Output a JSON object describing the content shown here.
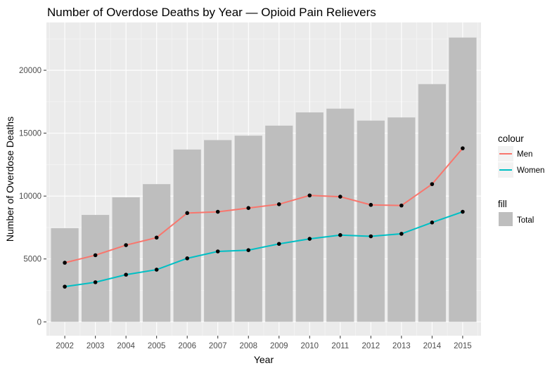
{
  "chart_data": {
    "type": "bar",
    "title": "Number of Overdose Deaths by Year — Opioid Pain Relievers",
    "xlabel": "Year",
    "ylabel": "Number of Overdose Deaths",
    "categories": [
      "2002",
      "2003",
      "2004",
      "2005",
      "2006",
      "2007",
      "2008",
      "2009",
      "2010",
      "2011",
      "2012",
      "2013",
      "2014",
      "2015"
    ],
    "ylim": [
      -1100,
      23800
    ],
    "yticks": [
      0,
      5000,
      10000,
      15000,
      20000
    ],
    "ytick_labels": [
      "0",
      "5000",
      "10000",
      "15000",
      "20000"
    ],
    "grid": true,
    "legend_position": "right",
    "bars": {
      "legend_title": "fill",
      "name": "Total",
      "color": "#bebebe",
      "values": [
        7450,
        8500,
        9900,
        10950,
        13700,
        14450,
        14800,
        15600,
        16650,
        16950,
        16000,
        16250,
        18900,
        22600
      ]
    },
    "lines": {
      "legend_title": "colour",
      "series": [
        {
          "name": "Men",
          "color": "#f8766d",
          "values": [
            4700,
            5300,
            6100,
            6700,
            8650,
            8750,
            9050,
            9350,
            10050,
            9950,
            9300,
            9250,
            10950,
            13800
          ]
        },
        {
          "name": "Women",
          "color": "#00bfc4",
          "values": [
            2800,
            3150,
            3750,
            4150,
            5050,
            5600,
            5700,
            6200,
            6600,
            6900,
            6800,
            7000,
            7900,
            8750
          ]
        }
      ]
    },
    "panel_background": "#ebebeb",
    "grid_color": "#ffffff",
    "point_color": "#000000"
  }
}
